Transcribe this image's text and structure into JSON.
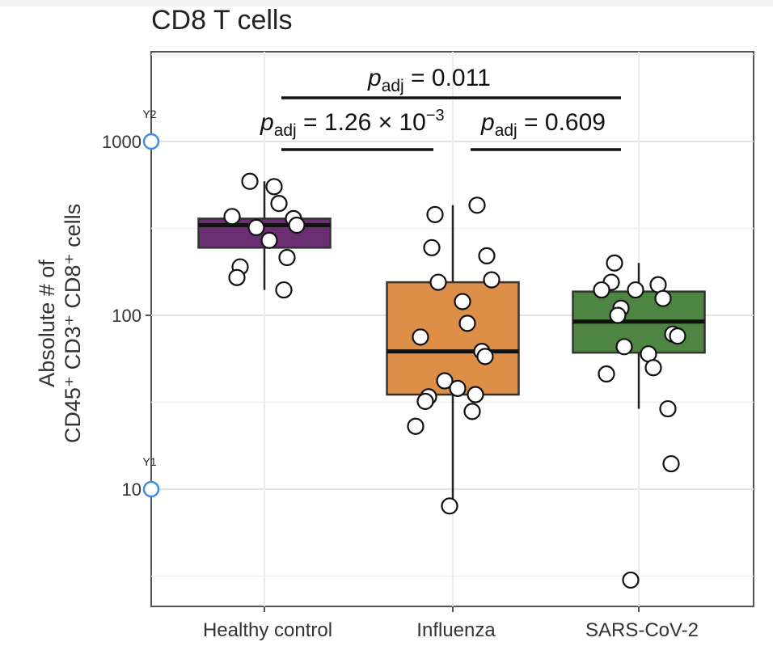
{
  "title": "CD8 T cells",
  "ylabel": {
    "line1": "Absolute # of",
    "line2": "CD45⁺ CD3⁺ CD8⁺ cells"
  },
  "chart_data": {
    "type": "box",
    "scale": "log10",
    "ylim": [
      2,
      3000
    ],
    "yticks": [
      10,
      100,
      1000
    ],
    "ytick_labels": [
      "10",
      "100",
      "1000"
    ],
    "grid": true,
    "categories": [
      "Healthy  control",
      "Influenza",
      "SARS-CoV-2"
    ],
    "boxes": [
      {
        "category": "Healthy  control",
        "color": "#6b2e73",
        "q1": 245,
        "median": 330,
        "q3": 360,
        "whisker_low": 140,
        "whisker_high": 590
      },
      {
        "category": "Influenza",
        "color": "#dd8f47",
        "q1": 35,
        "median": 62,
        "q3": 155,
        "whisker_low": 8,
        "whisker_high": 430
      },
      {
        "category": "SARS-CoV-2",
        "color": "#4e8542",
        "q1": 61,
        "median": 92,
        "q3": 137,
        "whisker_low": 29,
        "whisker_high": 200
      }
    ],
    "points": [
      {
        "category": "Healthy  control",
        "values": [
          590,
          550,
          440,
          370,
          360,
          330,
          320,
          270,
          215,
          190,
          165,
          140
        ]
      },
      {
        "category": "Influenza",
        "values": [
          430,
          380,
          245,
          220,
          160,
          155,
          120,
          90,
          75,
          62,
          58,
          42,
          38,
          35,
          34,
          32,
          28,
          23,
          8
        ]
      },
      {
        "category": "SARS-CoV-2",
        "values": [
          200,
          155,
          150,
          140,
          140,
          125,
          110,
          100,
          78,
          76,
          66,
          60,
          50,
          46,
          29,
          14,
          3
        ]
      }
    ],
    "comparisons": [
      {
        "from": "Healthy  control",
        "to": "SARS-CoV-2",
        "label": "0.011"
      },
      {
        "from": "Healthy  control",
        "to": "Influenza",
        "label": "1.26 × 10",
        "exponent": "−3"
      },
      {
        "from": "Influenza",
        "to": "SARS-CoV-2",
        "label": "0.609"
      }
    ],
    "p_symbol": "p",
    "p_subscript": "adj",
    "reference_markers": [
      {
        "label": "Y1",
        "value": 10
      },
      {
        "label": "Y2",
        "value": 1000
      }
    ]
  }
}
